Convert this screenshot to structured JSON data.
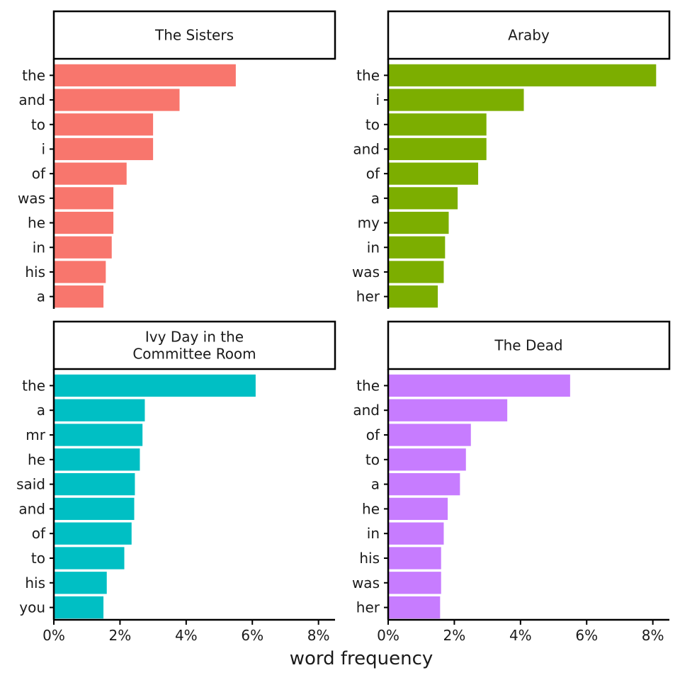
{
  "chart_data": {
    "type": "bar",
    "orientation": "horizontal",
    "xlabel": "word frequency",
    "xlim": [
      0,
      0.085
    ],
    "x_ticks": [
      0,
      0.02,
      0.04,
      0.06,
      0.08
    ],
    "x_tick_labels": [
      "0%",
      "2%",
      "4%",
      "6%",
      "8%"
    ],
    "grid": false,
    "legend": "none",
    "panels": [
      {
        "title_lines": [
          "The Sisters"
        ],
        "color": "#F8766D",
        "categories": [
          "the",
          "and",
          "to",
          "i",
          "of",
          "was",
          "he",
          "in",
          "his",
          "a"
        ],
        "values": [
          0.055,
          0.038,
          0.03,
          0.03,
          0.022,
          0.018,
          0.018,
          0.0175,
          0.0157,
          0.015
        ]
      },
      {
        "title_lines": [
          "Araby"
        ],
        "color": "#7CAE00",
        "categories": [
          "the",
          "i",
          "to",
          "and",
          "of",
          "a",
          "my",
          "in",
          "was",
          "her"
        ],
        "values": [
          0.081,
          0.041,
          0.0297,
          0.0297,
          0.0272,
          0.021,
          0.0183,
          0.0172,
          0.0168,
          0.015
        ]
      },
      {
        "title_lines": [
          "Ivy Day in the",
          "Committee Room"
        ],
        "color": "#00BFC4",
        "categories": [
          "the",
          "a",
          "mr",
          "he",
          "said",
          "and",
          "of",
          "to",
          "his",
          "you"
        ],
        "values": [
          0.061,
          0.0275,
          0.0268,
          0.026,
          0.0245,
          0.0243,
          0.0235,
          0.0213,
          0.016,
          0.015
        ]
      },
      {
        "title_lines": [
          "The Dead"
        ],
        "color": "#C77CFF",
        "categories": [
          "the",
          "and",
          "of",
          "to",
          "a",
          "he",
          "in",
          "his",
          "was",
          "her"
        ],
        "values": [
          0.055,
          0.036,
          0.025,
          0.0235,
          0.0217,
          0.018,
          0.0168,
          0.016,
          0.016,
          0.0157
        ]
      }
    ]
  }
}
